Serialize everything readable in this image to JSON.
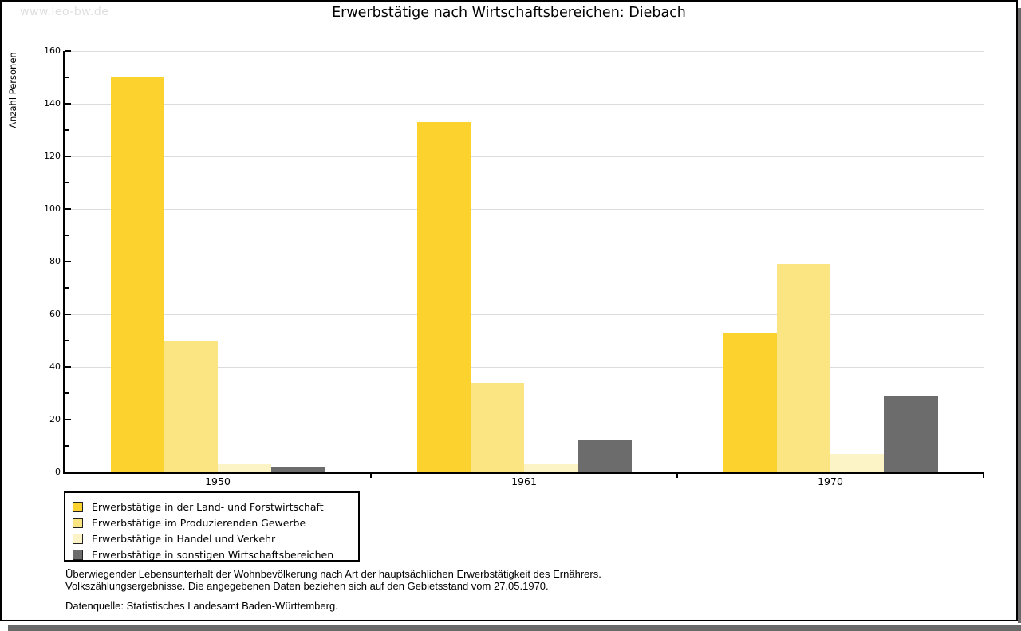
{
  "header": {
    "watermark": "www.leo-bw.de"
  },
  "chart_data": {
    "type": "bar",
    "title": "Erwerbstätige nach Wirtschaftsbereichen: Diebach",
    "ylabel": "Anzahl Personen",
    "xlabel": "",
    "ylim": [
      0,
      160
    ],
    "ytick_step": 20,
    "ytick_minor_step": 10,
    "grid": true,
    "legend_position": "bottom-left",
    "categories": [
      "1950",
      "1961",
      "1970"
    ],
    "series": [
      {
        "name": "Erwerbstätige in der Land- und Forstwirtschaft",
        "color": "#fcd32e",
        "values": [
          150,
          133,
          53
        ]
      },
      {
        "name": "Erwerbstätige im Produzierenden Gewerbe",
        "color": "#fbe583",
        "values": [
          50,
          34,
          79
        ]
      },
      {
        "name": "Erwerbstätige in Handel und Verkehr",
        "color": "#fcf3c6",
        "values": [
          3,
          3,
          7
        ]
      },
      {
        "name": "Erwerbstätige in sonstigen Wirtschaftsbereichen",
        "color": "#6c6c6c",
        "values": [
          2,
          12,
          29
        ]
      }
    ]
  },
  "footer": {
    "note_line1": "Überwiegender Lebensunterhalt der Wohnbevölkerung nach Art der hauptsächlichen Erwerbstätigkeit des Ernährers.",
    "note_line2": "Volkszählungsergebnisse. Die angegebenen Daten beziehen sich auf den Gebietsstand vom 27.05.1970.",
    "source": "Datenquelle: Statistisches Landesamt Baden-Württemberg."
  },
  "colors": {
    "grid": "#dcdcdc",
    "axis": "#000000",
    "watermark": "#dedede",
    "frame_shadow": "#696969"
  }
}
